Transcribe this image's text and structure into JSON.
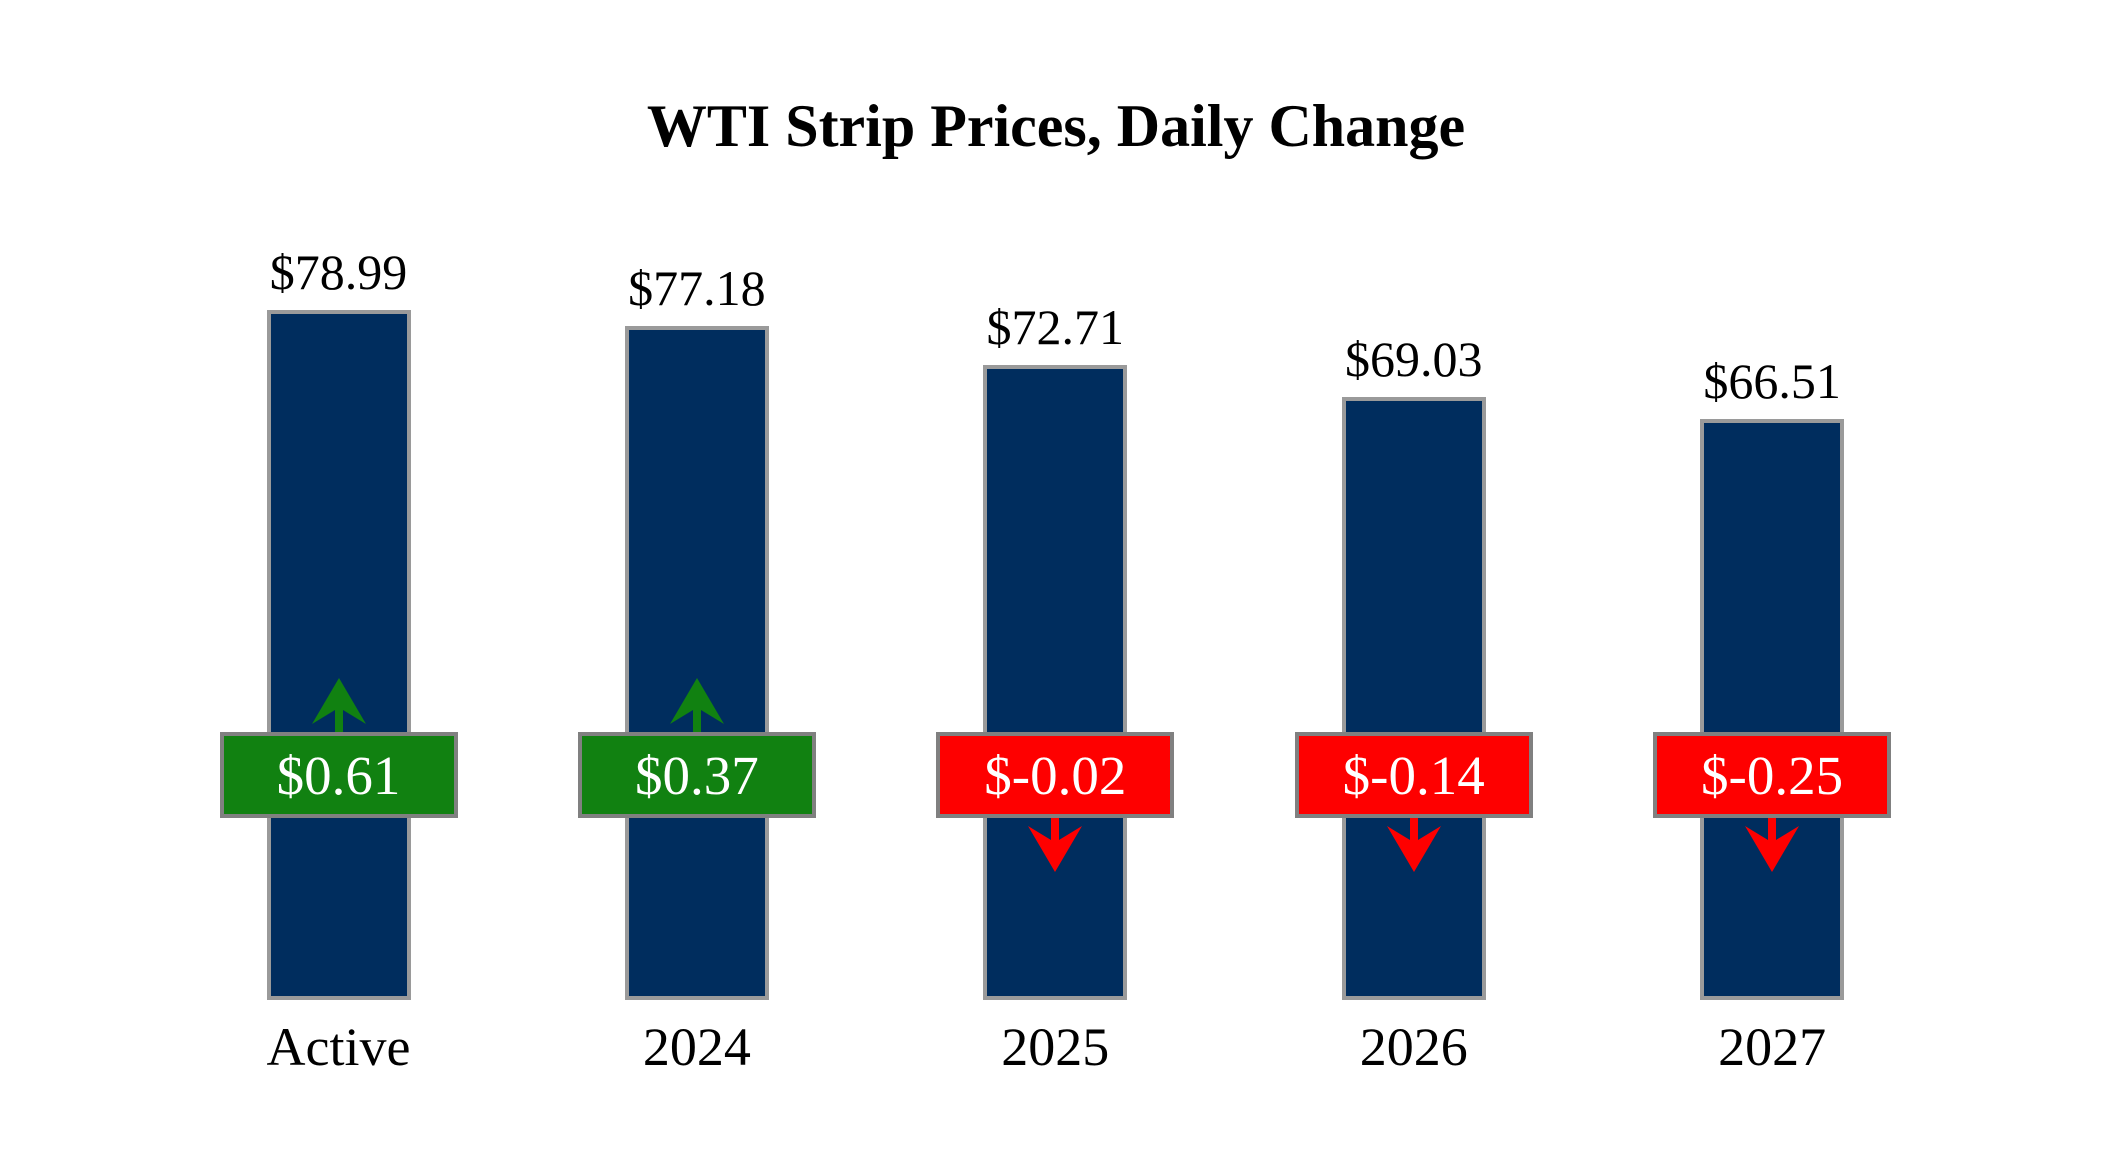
{
  "chart_data": {
    "type": "bar",
    "title": "WTI Strip Prices, Daily Change",
    "categories": [
      "Active",
      "2024",
      "2025",
      "2026",
      "2027"
    ],
    "series": [
      {
        "name": "strip_price",
        "values": [
          78.99,
          77.18,
          72.71,
          69.03,
          66.51
        ]
      },
      {
        "name": "daily_change",
        "values": [
          0.61,
          0.37,
          -0.02,
          -0.14,
          -0.25
        ]
      }
    ],
    "bars": [
      {
        "category": "Active",
        "price": 78.99,
        "price_label": "$78.99",
        "change": 0.61,
        "change_label": "$0.61",
        "direction": "up"
      },
      {
        "category": "2024",
        "price": 77.18,
        "price_label": "$77.18",
        "change": 0.37,
        "change_label": "$0.37",
        "direction": "up"
      },
      {
        "category": "2025",
        "price": 72.71,
        "price_label": "$72.71",
        "change": -0.02,
        "change_label": "$-0.02",
        "direction": "down"
      },
      {
        "category": "2026",
        "price": 69.03,
        "price_label": "$69.03",
        "change": -0.14,
        "change_label": "$-0.14",
        "direction": "down"
      },
      {
        "category": "2027",
        "price": 66.51,
        "price_label": "$66.51",
        "change": -0.25,
        "change_label": "$-0.25",
        "direction": "down"
      }
    ],
    "ylim": [
      0,
      79
    ],
    "grid": false,
    "legend_position": "none",
    "colors": {
      "background": "#ffffff",
      "text": "#000000",
      "bar_fill": "#002d5e",
      "bar_border": "#9a9a9a",
      "positive": "#118111",
      "negative": "#fe0000",
      "badge_border": "#808080",
      "badge_text": "#ffffff"
    }
  }
}
